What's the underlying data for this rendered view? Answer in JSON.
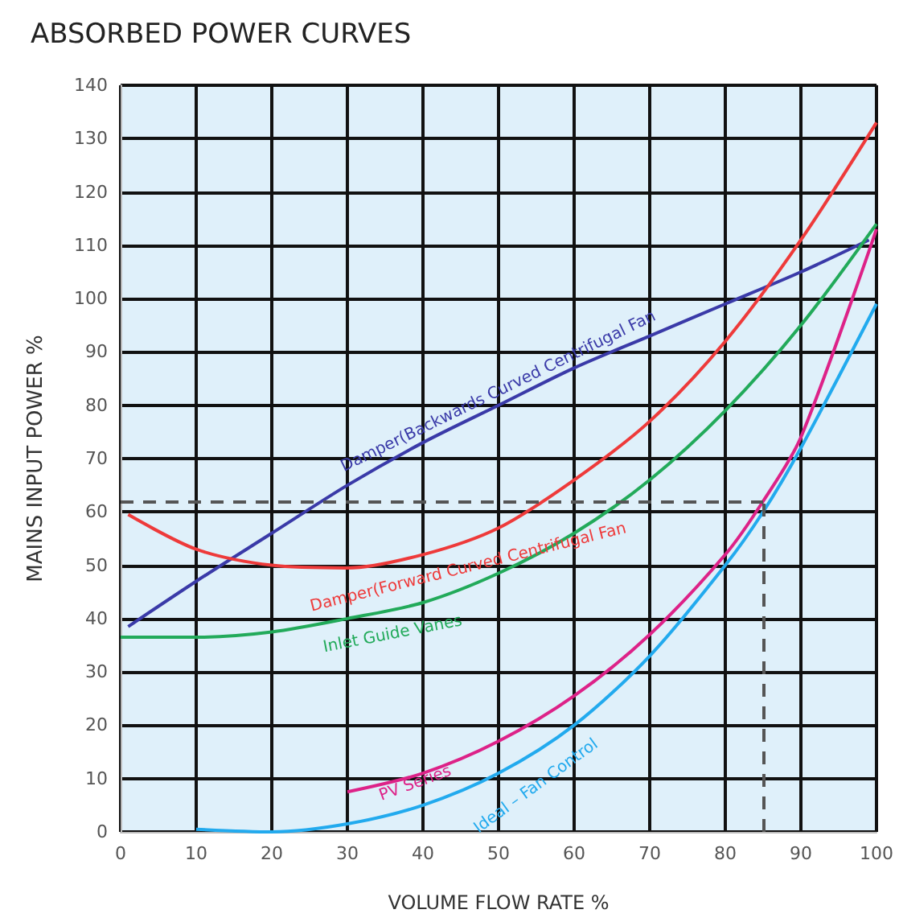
{
  "chart_data": {
    "type": "line",
    "title": "ABSORBED POWER CURVES",
    "xlabel": "VOLUME FLOW RATE %",
    "ylabel": "MAINS INPUT POWER %",
    "xlim": [
      0,
      100
    ],
    "xticks": [
      0,
      10,
      20,
      30,
      40,
      50,
      60,
      70,
      80,
      90,
      100
    ],
    "ylim": [
      0,
      140
    ],
    "yticks": [
      0,
      10,
      20,
      30,
      40,
      50,
      60,
      70,
      80,
      90,
      100,
      110,
      120,
      130,
      140
    ],
    "grid": true,
    "legend": false,
    "marker": "none",
    "line_style": "solid",
    "series": [
      {
        "name": "Damper(Backwards Curved Centrifugal Fan",
        "color": "#3a3aa8",
        "x": [
          1,
          10,
          20,
          30,
          40,
          50,
          60,
          70,
          80,
          90,
          99
        ],
        "values": [
          38.5,
          47,
          56,
          65,
          73,
          80,
          87,
          93,
          99,
          105,
          111
        ]
      },
      {
        "name": "Damper(Forward Curved Centrifugal Fan",
        "color": "#ee3a3a",
        "x": [
          1,
          10,
          20,
          30,
          40,
          50,
          60,
          70,
          80,
          90,
          100
        ],
        "values": [
          59.5,
          53,
          50,
          49.5,
          52,
          57,
          66,
          77,
          92,
          111,
          133
        ]
      },
      {
        "name": "Inlet Guide Vanes",
        "color": "#22aa5a",
        "x": [
          0,
          10,
          20,
          30,
          40,
          50,
          60,
          70,
          80,
          90,
          100
        ],
        "values": [
          36.5,
          36.5,
          37.5,
          40,
          43,
          48.5,
          56,
          66,
          79,
          95,
          114
        ]
      },
      {
        "name": "PV Series",
        "color": "#dd2288",
        "x": [
          30,
          40,
          50,
          60,
          70,
          80,
          85,
          90,
          100
        ],
        "values": [
          7.5,
          11,
          17,
          25.5,
          37,
          52,
          62,
          74,
          113
        ]
      },
      {
        "name": "Ideal – Fan Control",
        "color": "#22aaee",
        "x": [
          10,
          20,
          30,
          40,
          50,
          60,
          70,
          80,
          85,
          90,
          100
        ],
        "values": [
          0.5,
          0,
          1.5,
          5,
          11,
          20,
          33,
          50,
          60,
          72,
          99
        ]
      }
    ],
    "ref_lines": [
      {
        "axis": "y",
        "value": 62,
        "color": "#555555",
        "line_style": "dashed"
      },
      {
        "axis": "x",
        "value": 85,
        "color": "#555555",
        "line_style": "dashed"
      }
    ]
  }
}
